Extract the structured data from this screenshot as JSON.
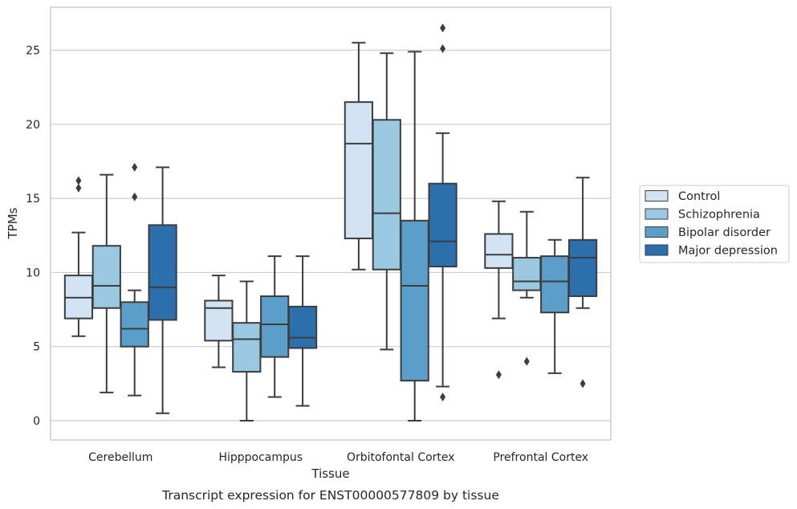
{
  "chart_data": {
    "type": "box",
    "caption": "Transcript expression for ENST00000577809 by tissue",
    "xlabel": "Tissue",
    "ylabel": "TPMs",
    "ylim": [
      -1.3,
      27.9
    ],
    "yticks": [
      0,
      5,
      10,
      15,
      20,
      25
    ],
    "grid": "horizontal",
    "legend_position": "right",
    "categories": [
      "Cerebellum",
      "Hipppocampus",
      "Orbitofontal Cortex",
      "Prefrontal Cortex"
    ],
    "series": [
      {
        "name": "Control",
        "color": "#d2e3f3",
        "boxes": [
          {
            "whislo": 5.7,
            "q1": 6.9,
            "med": 8.3,
            "q3": 9.8,
            "whishi": 12.7,
            "fliers": [
              16.2,
              15.7
            ]
          },
          {
            "whislo": 3.6,
            "q1": 5.4,
            "med": 7.6,
            "q3": 8.1,
            "whishi": 9.8,
            "fliers": []
          },
          {
            "whislo": 10.2,
            "q1": 12.3,
            "med": 18.7,
            "q3": 21.5,
            "whishi": 25.5,
            "fliers": []
          },
          {
            "whislo": 6.9,
            "q1": 10.3,
            "med": 11.2,
            "q3": 12.6,
            "whishi": 14.8,
            "fliers": [
              3.1
            ]
          }
        ]
      },
      {
        "name": "Schizophrenia",
        "color": "#9ac8e0",
        "boxes": [
          {
            "whislo": 1.9,
            "q1": 7.6,
            "med": 9.1,
            "q3": 11.8,
            "whishi": 16.6,
            "fliers": []
          },
          {
            "whislo": 0.0,
            "q1": 3.3,
            "med": 5.5,
            "q3": 6.6,
            "whishi": 9.4,
            "fliers": []
          },
          {
            "whislo": 4.8,
            "q1": 10.2,
            "med": 14.0,
            "q3": 20.3,
            "whishi": 24.8,
            "fliers": []
          },
          {
            "whislo": 8.3,
            "q1": 8.8,
            "med": 9.4,
            "q3": 11.0,
            "whishi": 14.1,
            "fliers": [
              4.0
            ]
          }
        ]
      },
      {
        "name": "Bipolar disorder",
        "color": "#5a9ec9",
        "boxes": [
          {
            "whislo": 1.7,
            "q1": 5.0,
            "med": 6.2,
            "q3": 8.0,
            "whishi": 8.8,
            "fliers": [
              17.1,
              15.1
            ]
          },
          {
            "whislo": 1.6,
            "q1": 4.3,
            "med": 6.5,
            "q3": 8.4,
            "whishi": 11.1,
            "fliers": []
          },
          {
            "whislo": 0.0,
            "q1": 2.7,
            "med": 9.1,
            "q3": 13.5,
            "whishi": 24.9,
            "fliers": []
          },
          {
            "whislo": 3.2,
            "q1": 7.3,
            "med": 9.4,
            "q3": 11.1,
            "whishi": 12.2,
            "fliers": []
          }
        ]
      },
      {
        "name": "Major depression",
        "color": "#2b6fad",
        "boxes": [
          {
            "whislo": 0.5,
            "q1": 6.8,
            "med": 9.0,
            "q3": 13.2,
            "whishi": 17.1,
            "fliers": []
          },
          {
            "whislo": 1.0,
            "q1": 4.9,
            "med": 5.6,
            "q3": 7.7,
            "whishi": 11.1,
            "fliers": []
          },
          {
            "whislo": 2.3,
            "q1": 10.4,
            "med": 12.1,
            "q3": 16.0,
            "whishi": 19.4,
            "fliers": [
              26.5,
              25.1,
              1.6
            ]
          },
          {
            "whislo": 7.6,
            "q1": 8.4,
            "med": 11.0,
            "q3": 12.2,
            "whishi": 16.4,
            "fliers": [
              2.5
            ]
          }
        ]
      }
    ]
  }
}
